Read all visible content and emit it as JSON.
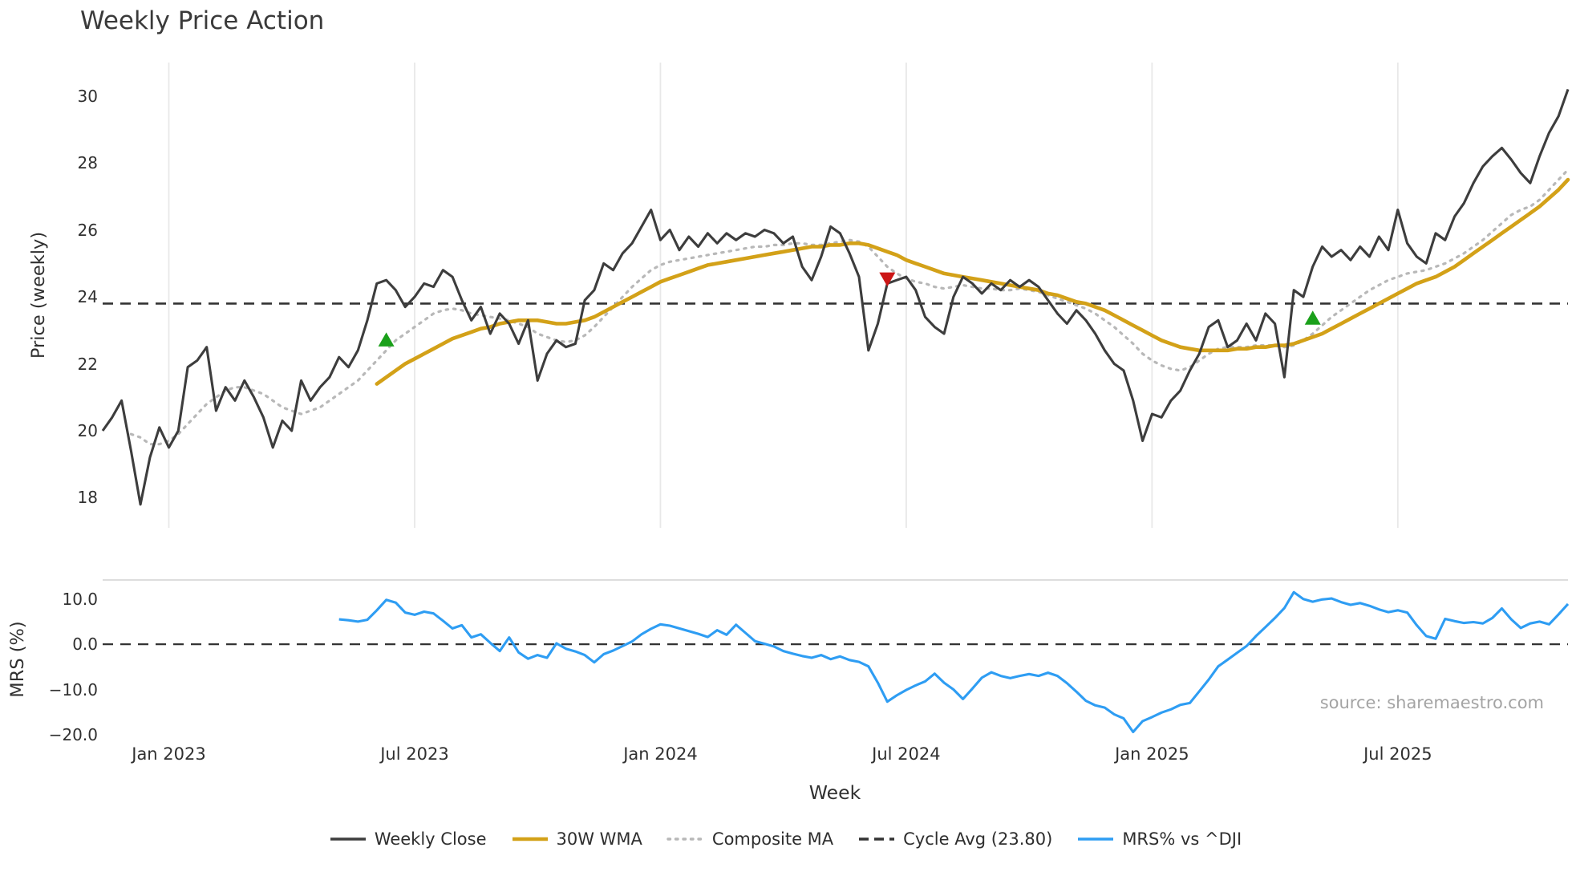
{
  "title": "Weekly Price Action",
  "source": "source: sharemaestro.com",
  "colors": {
    "close": "#3d3d3d",
    "wma": "#d3a118",
    "composite": "#b8b8b8",
    "cycle": "#333333",
    "mrs": "#2e9df3",
    "buy": "#1aa01a",
    "sell": "#cc1616",
    "grid": "#e8e8e8",
    "panel_border": "#d8d8d8"
  },
  "chart_data": {
    "type": "line",
    "title": "Weekly Price Action",
    "xlabel": "Week",
    "weeks_domain": [
      0,
      155
    ],
    "xticks": [
      {
        "week": 7,
        "label": "Jan 2023"
      },
      {
        "week": 33,
        "label": "Jul 2023"
      },
      {
        "week": 59,
        "label": "Jan 2024"
      },
      {
        "week": 85,
        "label": "Jul 2024"
      },
      {
        "week": 111,
        "label": "Jan 2025"
      },
      {
        "week": 137,
        "label": "Jul 2025"
      }
    ],
    "top_panel": {
      "ylabel": "Price (weekly)",
      "ylim": [
        17.1,
        31.0
      ],
      "ytick_values": [
        30,
        28,
        26,
        24,
        22,
        20,
        18
      ],
      "ytick_labels": [
        "30",
        "28",
        "26",
        "24",
        "22",
        "20",
        "18"
      ],
      "cycle_avg": 23.8,
      "grid": "vertical",
      "series": [
        {
          "name": "Weekly Close",
          "style": "solid",
          "color_key": "close",
          "start_week": 0,
          "values": [
            20.0,
            20.4,
            20.9,
            19.4,
            17.8,
            19.2,
            20.1,
            19.5,
            20.0,
            21.9,
            22.1,
            22.5,
            20.6,
            21.3,
            20.9,
            21.5,
            21.0,
            20.4,
            19.5,
            20.3,
            20.0,
            21.5,
            20.9,
            21.3,
            21.6,
            22.2,
            21.9,
            22.4,
            23.3,
            24.4,
            24.5,
            24.2,
            23.7,
            24.0,
            24.4,
            24.3,
            24.8,
            24.6,
            23.9,
            23.3,
            23.7,
            22.9,
            23.5,
            23.2,
            22.6,
            23.3,
            21.5,
            22.3,
            22.7,
            22.5,
            22.6,
            23.9,
            24.2,
            25.0,
            24.8,
            25.3,
            25.6,
            26.1,
            26.6,
            25.7,
            26.0,
            25.4,
            25.8,
            25.5,
            25.9,
            25.6,
            25.9,
            25.7,
            25.9,
            25.8,
            26.0,
            25.9,
            25.6,
            25.8,
            24.9,
            24.5,
            25.2,
            26.1,
            25.9,
            25.3,
            24.6,
            22.4,
            23.2,
            24.4,
            24.5,
            24.6,
            24.2,
            23.4,
            23.1,
            22.9,
            24.0,
            24.6,
            24.4,
            24.1,
            24.4,
            24.2,
            24.5,
            24.3,
            24.5,
            24.3,
            23.9,
            23.5,
            23.2,
            23.6,
            23.3,
            22.9,
            22.4,
            22.0,
            21.8,
            20.9,
            19.7,
            20.5,
            20.4,
            20.9,
            21.2,
            21.8,
            22.3,
            23.1,
            23.3,
            22.5,
            22.7,
            23.2,
            22.7,
            23.5,
            23.2,
            21.6,
            24.2,
            24.0,
            24.9,
            25.5,
            25.2,
            25.4,
            25.1,
            25.5,
            25.2,
            25.8,
            25.4,
            26.6,
            25.6,
            25.2,
            25.0,
            25.9,
            25.7,
            26.4,
            26.8,
            27.4,
            27.9,
            28.2,
            28.45,
            28.1,
            27.7,
            27.4,
            28.2,
            28.9,
            29.4,
            30.2
          ]
        },
        {
          "name": "30W WMA",
          "style": "solid",
          "color_key": "wma",
          "start_week": 29,
          "values": [
            21.4,
            21.6,
            21.8,
            22.0,
            22.15,
            22.3,
            22.45,
            22.6,
            22.75,
            22.85,
            22.95,
            23.05,
            23.1,
            23.2,
            23.25,
            23.3,
            23.3,
            23.3,
            23.25,
            23.2,
            23.2,
            23.25,
            23.3,
            23.4,
            23.55,
            23.7,
            23.85,
            24.0,
            24.15,
            24.3,
            24.45,
            24.55,
            24.65,
            24.75,
            24.85,
            24.95,
            25.0,
            25.05,
            25.1,
            25.15,
            25.2,
            25.25,
            25.3,
            25.35,
            25.4,
            25.45,
            25.5,
            25.5,
            25.55,
            25.55,
            25.6,
            25.6,
            25.55,
            25.45,
            25.35,
            25.25,
            25.1,
            25.0,
            24.9,
            24.8,
            24.7,
            24.65,
            24.6,
            24.55,
            24.5,
            24.45,
            24.4,
            24.35,
            24.3,
            24.25,
            24.2,
            24.1,
            24.05,
            23.95,
            23.85,
            23.8,
            23.7,
            23.6,
            23.45,
            23.3,
            23.15,
            23.0,
            22.85,
            22.7,
            22.6,
            22.5,
            22.45,
            22.4,
            22.4,
            22.4,
            22.4,
            22.45,
            22.45,
            22.5,
            22.5,
            22.55,
            22.55,
            22.6,
            22.7,
            22.8,
            22.9,
            23.05,
            23.2,
            23.35,
            23.5,
            23.65,
            23.8,
            23.95,
            24.1,
            24.25,
            24.4,
            24.5,
            24.6,
            24.75,
            24.9,
            25.1,
            25.3,
            25.5,
            25.7,
            25.9,
            26.1,
            26.3,
            26.5,
            26.7,
            26.95,
            27.2,
            27.5
          ]
        },
        {
          "name": "Composite MA",
          "style": "dotted",
          "color_key": "composite",
          "start_week": 3,
          "values": [
            19.9,
            19.8,
            19.6,
            19.6,
            19.7,
            19.9,
            20.2,
            20.5,
            20.8,
            21.0,
            21.2,
            21.3,
            21.3,
            21.2,
            21.1,
            20.9,
            20.7,
            20.6,
            20.5,
            20.6,
            20.7,
            20.9,
            21.1,
            21.3,
            21.5,
            21.8,
            22.1,
            22.4,
            22.7,
            22.9,
            23.1,
            23.3,
            23.5,
            23.6,
            23.65,
            23.6,
            23.5,
            23.45,
            23.4,
            23.35,
            23.3,
            23.2,
            23.1,
            22.9,
            22.8,
            22.7,
            22.65,
            22.7,
            22.85,
            23.1,
            23.4,
            23.7,
            24.0,
            24.3,
            24.55,
            24.8,
            24.95,
            25.05,
            25.1,
            25.15,
            25.2,
            25.25,
            25.3,
            25.35,
            25.4,
            25.45,
            25.5,
            25.5,
            25.55,
            25.55,
            25.6,
            25.6,
            25.55,
            25.55,
            25.6,
            25.65,
            25.7,
            25.65,
            25.5,
            25.2,
            24.9,
            24.7,
            24.55,
            24.45,
            24.4,
            24.3,
            24.25,
            24.3,
            24.35,
            24.3,
            24.25,
            24.25,
            24.2,
            24.2,
            24.25,
            24.2,
            24.15,
            24.05,
            23.95,
            23.85,
            23.75,
            23.65,
            23.5,
            23.3,
            23.1,
            22.85,
            22.6,
            22.3,
            22.1,
            21.95,
            21.85,
            21.8,
            21.9,
            22.1,
            22.3,
            22.45,
            22.5,
            22.5,
            22.5,
            22.55,
            22.55,
            22.55,
            22.5,
            22.55,
            22.7,
            22.9,
            23.15,
            23.4,
            23.6,
            23.8,
            24.0,
            24.2,
            24.35,
            24.5,
            24.6,
            24.7,
            24.75,
            24.8,
            24.9,
            25.0,
            25.15,
            25.3,
            25.5,
            25.7,
            25.95,
            26.2,
            26.45,
            26.6,
            26.7,
            26.9,
            27.2,
            27.5,
            27.8
          ]
        }
      ],
      "markers": [
        {
          "signal": "buy",
          "shape": "triangle-up",
          "week": 30,
          "price": 22.7
        },
        {
          "signal": "sell",
          "shape": "triangle-down",
          "week": 83,
          "price": 24.55
        },
        {
          "signal": "buy",
          "shape": "triangle-up",
          "week": 128,
          "price": 23.35
        }
      ]
    },
    "bottom_panel": {
      "ylabel": "MRS (%)",
      "ylim": [
        -20.9,
        14.2
      ],
      "ytick_values": [
        10,
        0,
        -10,
        -20
      ],
      "ytick_labels": [
        "10.0",
        "0.0",
        "−10.0",
        "−20.0"
      ],
      "zero_line": 0,
      "series": [
        {
          "name": "MRS% vs ^DJI",
          "style": "solid",
          "color_key": "mrs",
          "start_week": 25,
          "values": [
            5.5,
            5.3,
            5.0,
            5.4,
            7.5,
            9.8,
            9.2,
            7.0,
            6.5,
            7.2,
            6.8,
            5.2,
            3.5,
            4.2,
            1.5,
            2.2,
            0.3,
            -1.5,
            1.5,
            -1.8,
            -3.2,
            -2.4,
            -3.0,
            0.2,
            -1.0,
            -1.6,
            -2.4,
            -4.0,
            -2.2,
            -1.4,
            -0.4,
            0.6,
            2.2,
            3.4,
            4.4,
            4.1,
            3.5,
            2.9,
            2.3,
            1.6,
            3.1,
            2.1,
            4.3,
            2.5,
            0.7,
            0.1,
            -0.5,
            -1.5,
            -2.1,
            -2.6,
            -3.0,
            -2.4,
            -3.3,
            -2.7,
            -3.5,
            -3.9,
            -4.9,
            -8.5,
            -12.7,
            -11.3,
            -10.1,
            -9.1,
            -8.2,
            -6.5,
            -8.5,
            -10.0,
            -12.1,
            -9.8,
            -7.4,
            -6.2,
            -7.0,
            -7.5,
            -7.0,
            -6.6,
            -7.0,
            -6.3,
            -7.0,
            -8.6,
            -10.5,
            -12.5,
            -13.5,
            -14.0,
            -15.5,
            -16.4,
            -19.4,
            -17.0,
            -16.1,
            -15.1,
            -14.4,
            -13.4,
            -13.0,
            -10.4,
            -7.8,
            -4.9,
            -3.4,
            -1.9,
            -0.4,
            1.8,
            3.8,
            5.8,
            8.0,
            11.5,
            10.0,
            9.4,
            9.9,
            10.1,
            9.3,
            8.7,
            9.1,
            8.5,
            7.7,
            7.1,
            7.5,
            7.0,
            4.2,
            1.8,
            1.2,
            5.6,
            5.1,
            4.7,
            4.9,
            4.6,
            5.8,
            7.9,
            5.5,
            3.6,
            4.6,
            5.0,
            4.4,
            6.6,
            8.9
          ]
        }
      ]
    },
    "legend": [
      {
        "label": "Weekly Close",
        "style": "solid",
        "color_key": "close"
      },
      {
        "label": "30W WMA",
        "style": "solid",
        "color_key": "wma"
      },
      {
        "label": "Composite MA",
        "style": "dotted",
        "color_key": "composite"
      },
      {
        "label": "Cycle Avg (23.80)",
        "style": "dashed",
        "color_key": "cycle"
      },
      {
        "label": "MRS% vs ^DJI",
        "style": "solid",
        "color_key": "mrs"
      }
    ]
  }
}
